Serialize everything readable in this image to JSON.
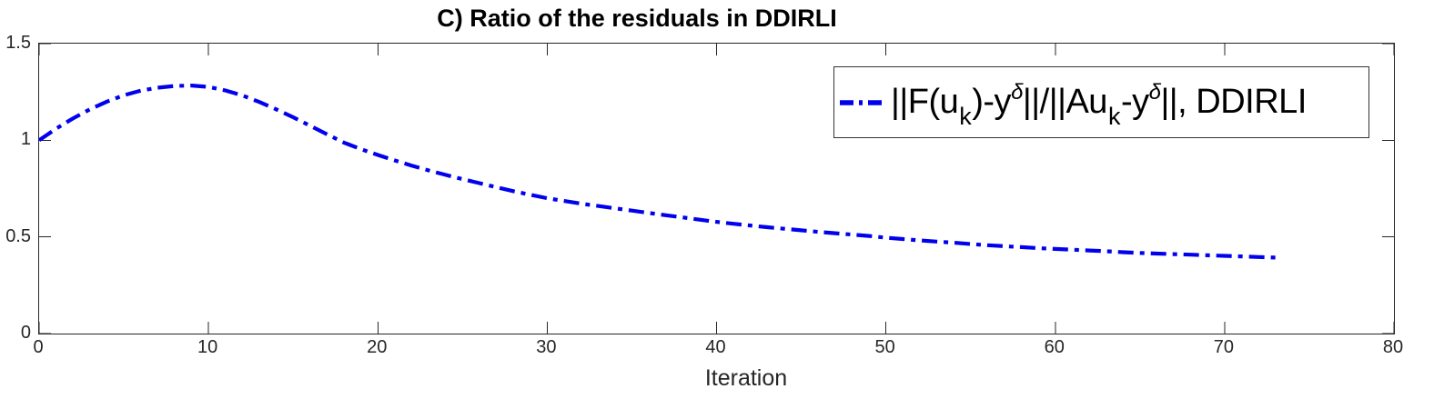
{
  "chart_data": {
    "type": "line",
    "title": "C) Ratio of the residuals in DDIRLI",
    "xlabel": "Iteration",
    "ylabel": "",
    "xlim": [
      0,
      80
    ],
    "ylim": [
      0,
      1.5
    ],
    "xticks": [
      0,
      10,
      20,
      30,
      40,
      50,
      60,
      70,
      80
    ],
    "xtick_labels": [
      "0",
      "10",
      "20",
      "30",
      "40",
      "50",
      "60",
      "70",
      "80"
    ],
    "yticks": [
      0,
      0.5,
      1,
      1.5
    ],
    "ytick_labels": [
      "0",
      "0.5",
      "1",
      "1.5"
    ],
    "grid": false,
    "axis_color": "#262626",
    "legend": {
      "position": "northeast",
      "boxed": true,
      "label_plain": "||F(u_k)-y^δ||/||Au_k-y^δ||, DDIRLI",
      "parts": {
        "p1": "||F(u",
        "sub1": "k",
        "p2": ")-y",
        "sup1": "δ",
        "p3": "||/||Au",
        "sub2": "k",
        "p4": "-y",
        "sup2": "δ",
        "p5": "||, DDIRLI"
      }
    },
    "series": [
      {
        "name": "||F(u_k)-y^δ||/||Au_k-y^δ||, DDIRLI",
        "color": "#0000EE",
        "line_style": "dash-dot",
        "line_width": 4,
        "x": [
          0,
          1,
          2,
          3,
          4,
          5,
          6,
          7,
          8,
          9,
          10,
          11,
          12,
          13,
          14,
          15,
          16,
          17,
          18,
          19,
          20,
          21,
          22,
          23,
          24,
          25,
          26,
          27,
          28,
          29,
          30,
          31,
          32,
          33,
          34,
          35,
          36,
          37,
          38,
          39,
          40,
          41,
          42,
          43,
          44,
          45,
          46,
          47,
          48,
          49,
          50,
          51,
          52,
          53,
          54,
          55,
          56,
          57,
          58,
          59,
          60,
          61,
          62,
          63,
          64,
          65,
          66,
          67,
          68,
          69,
          70,
          71,
          72,
          73
        ],
        "y": [
          1.0,
          1.06,
          1.113,
          1.16,
          1.2,
          1.233,
          1.257,
          1.272,
          1.281,
          1.283,
          1.276,
          1.258,
          1.232,
          1.198,
          1.16,
          1.119,
          1.075,
          1.031,
          0.988,
          0.954,
          0.924,
          0.896,
          0.869,
          0.844,
          0.821,
          0.799,
          0.778,
          0.757,
          0.737,
          0.718,
          0.7,
          0.686,
          0.672,
          0.66,
          0.648,
          0.636,
          0.624,
          0.612,
          0.601,
          0.589,
          0.578,
          0.568,
          0.559,
          0.55,
          0.542,
          0.534,
          0.526,
          0.519,
          0.512,
          0.505,
          0.496,
          0.489,
          0.482,
          0.476,
          0.47,
          0.463,
          0.457,
          0.452,
          0.447,
          0.442,
          0.438,
          0.434,
          0.43,
          0.426,
          0.421,
          0.417,
          0.414,
          0.411,
          0.408,
          0.405,
          0.402,
          0.399,
          0.396,
          0.393
        ]
      }
    ]
  }
}
